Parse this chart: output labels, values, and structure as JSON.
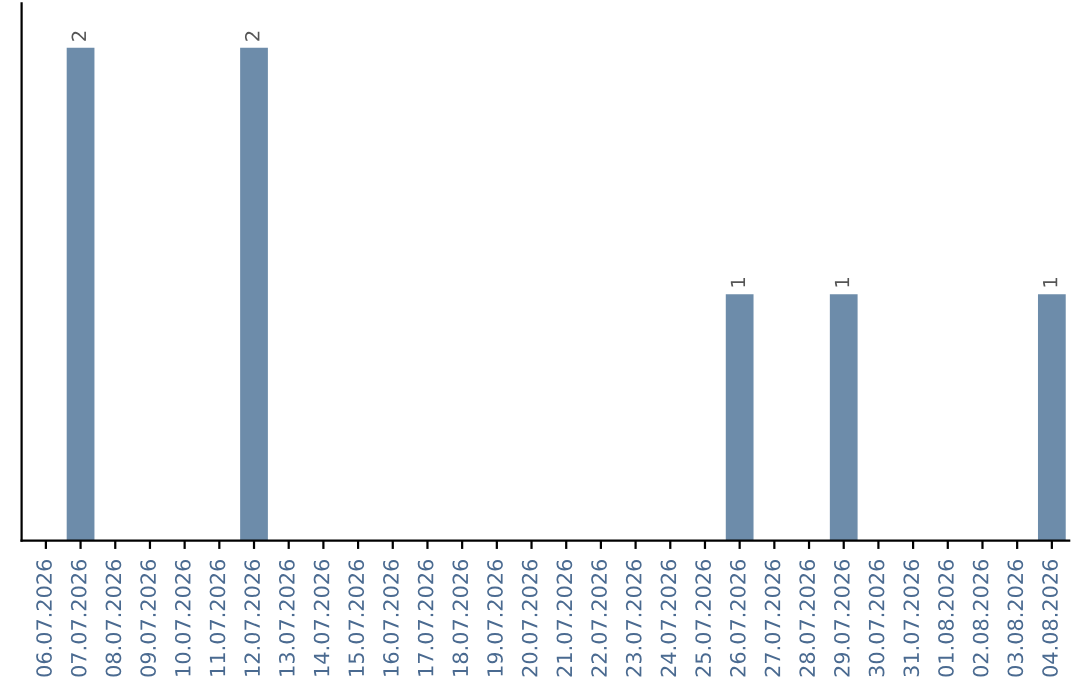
{
  "chart_data": {
    "type": "bar",
    "categories": [
      "06.07.2026",
      "07.07.2026",
      "08.07.2026",
      "09.07.2026",
      "10.07.2026",
      "11.07.2026",
      "12.07.2026",
      "13.07.2026",
      "14.07.2026",
      "15.07.2026",
      "16.07.2026",
      "17.07.2026",
      "18.07.2026",
      "19.07.2026",
      "20.07.2026",
      "21.07.2026",
      "22.07.2026",
      "23.07.2026",
      "24.07.2026",
      "25.07.2026",
      "26.07.2026",
      "27.07.2026",
      "28.07.2026",
      "29.07.2026",
      "30.07.2026",
      "31.07.2026",
      "01.08.2026",
      "02.08.2026",
      "03.08.2026",
      "04.08.2026"
    ],
    "values": [
      0,
      2,
      0,
      0,
      0,
      0,
      2,
      0,
      0,
      0,
      0,
      0,
      0,
      0,
      0,
      0,
      0,
      0,
      0,
      0,
      1,
      0,
      0,
      1,
      0,
      0,
      0,
      0,
      0,
      1
    ],
    "value_labels": [
      null,
      "2",
      null,
      null,
      null,
      null,
      "2",
      null,
      null,
      null,
      null,
      null,
      null,
      null,
      null,
      null,
      null,
      null,
      null,
      null,
      "1",
      null,
      null,
      "1",
      null,
      null,
      null,
      null,
      null,
      "1"
    ],
    "color": "#6d8caa",
    "tick_labels": "x",
    "grid": false,
    "legend": false
  }
}
